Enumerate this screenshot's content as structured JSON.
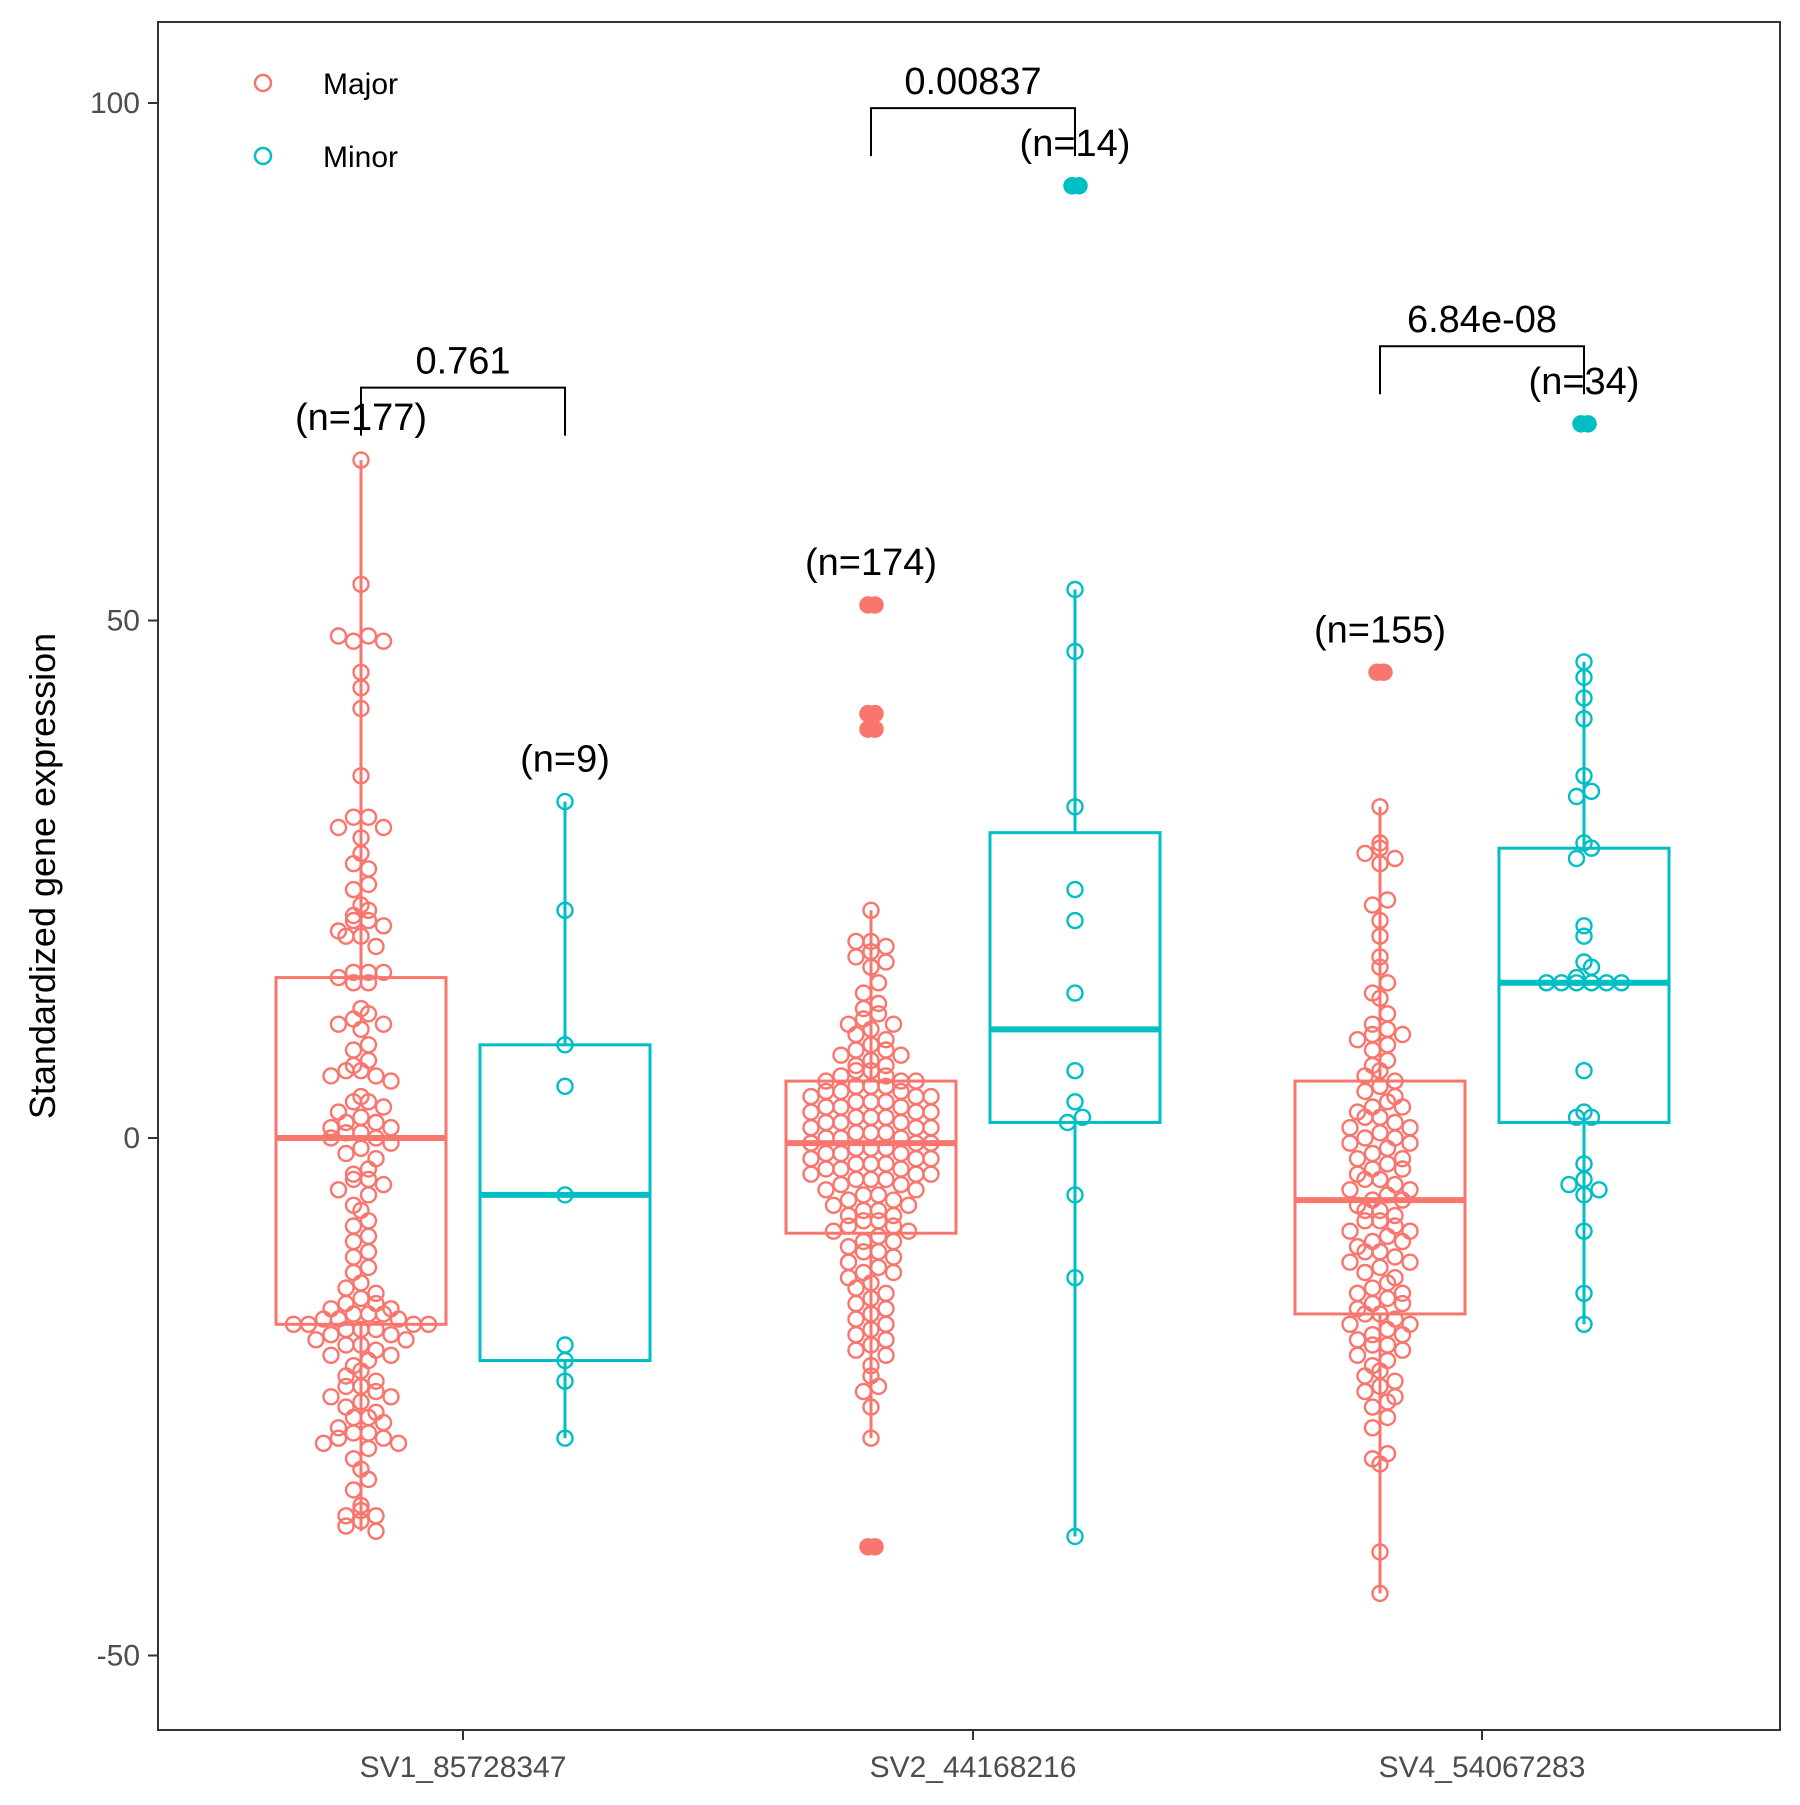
{
  "chart_data": {
    "type": "box",
    "xlabel": "",
    "ylabel": "Standardized gene expression",
    "ylim": [
      -57,
      108
    ],
    "yticks": [
      -50,
      0,
      50,
      100
    ],
    "categories": [
      "SV1_85728347",
      "SV2_44168216",
      "SV4_54067283"
    ],
    "legend": {
      "position": "top-left",
      "entries": [
        {
          "name": "Major",
          "color": "#F8766D"
        },
        {
          "name": "Minor",
          "color": "#00BFC4"
        }
      ]
    },
    "grid": false,
    "series": [
      {
        "name": "Major",
        "color": "#F8766D",
        "boxes": [
          {
            "category": "SV1_85728347",
            "n_label": "(n=177)",
            "whisker_low": -38,
            "q1": -18,
            "median": 0,
            "q3": 15.5,
            "whisker_high": 65.5,
            "outliers": []
          },
          {
            "category": "SV2_44168216",
            "n_label": "(n=174)",
            "whisker_low": -29,
            "q1": -9.2,
            "median": -0.5,
            "q3": 5.5,
            "whisker_high": 22,
            "outliers": [
              51.5,
              41,
              39.5,
              -39.5
            ]
          },
          {
            "category": "SV4_54067283",
            "n_label": "(n=155)",
            "whisker_low": -44,
            "q1": -17,
            "median": -6,
            "q3": 5.5,
            "whisker_high": 32,
            "outliers": [
              45
            ]
          }
        ]
      },
      {
        "name": "Minor",
        "color": "#00BFC4",
        "boxes": [
          {
            "category": "SV1_85728347",
            "n_label": "(n=9)",
            "whisker_low": -29,
            "q1": -21.5,
            "median": -5.5,
            "q3": 9,
            "whisker_high": 32.5,
            "outliers": []
          },
          {
            "category": "SV2_44168216",
            "n_label": "(n=14)",
            "whisker_low": -38.5,
            "q1": 1.5,
            "median": 10.5,
            "q3": 29.5,
            "whisker_high": 53,
            "outliers": [
              92
            ]
          },
          {
            "category": "SV4_54067283",
            "n_label": "(n=34)",
            "whisker_low": -18,
            "q1": 1.5,
            "median": 15,
            "q3": 28,
            "whisker_high": 46,
            "outliers": [
              69
            ]
          }
        ]
      }
    ],
    "comparisons": [
      {
        "category": "SV1_85728347",
        "p_value": "0.761",
        "bracket_y": 72.5
      },
      {
        "category": "SV2_44168216",
        "p_value": "0.00837",
        "bracket_y": 99.5
      },
      {
        "category": "SV4_54067283",
        "p_value": "6.84e-08",
        "bracket_y": 76.5
      }
    ],
    "points": {
      "SV1_85728347": {
        "Major": [
          65.5,
          53.5,
          48.5,
          48,
          48,
          48.5,
          45,
          43.5,
          41.5,
          35,
          31,
          31,
          30,
          30,
          29,
          27.5,
          26,
          26.5,
          24.5,
          24,
          22.5,
          22,
          21,
          21.5,
          21,
          20.5,
          20,
          19.5,
          19.5,
          18.5,
          16,
          16,
          16,
          15.5,
          15,
          15,
          12.5,
          12,
          11.5,
          11,
          11,
          10.5,
          9,
          8.5,
          7.5,
          7,
          6.5,
          6.5,
          6,
          6,
          5.5,
          4,
          3.5,
          3.5,
          3,
          2.5,
          2,
          1.5,
          1.5,
          1,
          1,
          0.5,
          0.5,
          0,
          0,
          -0.5,
          -1,
          -1.5,
          -2,
          -3,
          -3.5,
          -4,
          -4,
          -4.5,
          -5,
          -5.5,
          -6.5,
          -7,
          -8,
          -8.5,
          -9.5,
          -10,
          -11,
          -11.5,
          -12.5,
          -13,
          -14,
          -14.5,
          -15,
          -15.5,
          -16,
          -16,
          -16.5,
          -16.5,
          -17,
          -17,
          -17,
          -17.5,
          -17.5,
          -17.5,
          -18,
          -18,
          -18,
          -18,
          -18.5,
          -18.5,
          -18.5,
          -19,
          -19,
          -19.5,
          -19.5,
          -20,
          -20,
          -20.5,
          -21,
          -21,
          -21.5,
          -22,
          -22.5,
          -23,
          -23.5,
          -24,
          -24,
          -24.5,
          -25,
          -25,
          -25.5,
          -26,
          -26.5,
          -27,
          -27,
          -27.5,
          -28,
          -28.5,
          -28.5,
          -29,
          -29,
          -29.5,
          -29.5,
          -30,
          -31,
          -32,
          -33,
          -34,
          -35.5,
          -36,
          -36.5,
          -36.5,
          -37,
          -37.5,
          -38
        ],
        "Minor": [
          32.5,
          22,
          9,
          5,
          -5.5,
          -20,
          -21.5,
          -23.5,
          -29
        ]
      },
      "SV2_44168216": {
        "Major": [
          22,
          19,
          19,
          18.5,
          18,
          17.5,
          17,
          16.5,
          15,
          14,
          13,
          12.5,
          12,
          11.5,
          11,
          11,
          10.5,
          10,
          9.5,
          9,
          8.5,
          8.5,
          8,
          8,
          7.5,
          7,
          7,
          6.5,
          6.5,
          6,
          6,
          5.5,
          5.5,
          5.5,
          5,
          5,
          5,
          4.5,
          4.5,
          4.5,
          4,
          4,
          4,
          3.5,
          3.5,
          3.5,
          3,
          3,
          3,
          2.5,
          2.5,
          2.5,
          2,
          2,
          2,
          1.5,
          1.5,
          1.5,
          1,
          1,
          1,
          0.5,
          0.5,
          0.5,
          0,
          0,
          0,
          -0.5,
          -0.5,
          -0.5,
          -1,
          -1,
          -1,
          -1.5,
          -1.5,
          -1.5,
          -2,
          -2,
          -2,
          -2.5,
          -2.5,
          -2.5,
          -3,
          -3,
          -3,
          -3.5,
          -3.5,
          -3.5,
          -4,
          -4,
          -4,
          -4.5,
          -4.5,
          -5,
          -5,
          -5.5,
          -5.5,
          -6,
          -6,
          -6.5,
          -6.5,
          -7,
          -7,
          -7.5,
          -7.5,
          -8,
          -8,
          -8.5,
          -8.5,
          -9,
          -9,
          -9.5,
          -10,
          -10,
          -10.5,
          -11,
          -11,
          -11.5,
          -12,
          -12.5,
          -13,
          -13,
          -13.5,
          -14,
          -14.5,
          -15,
          -15.5,
          -16,
          -16.5,
          -17,
          -17.5,
          -18,
          -18.5,
          -19,
          -19.5,
          -20,
          -20.5,
          -21,
          -22,
          -23,
          -24,
          -24.5,
          -26,
          -29
        ],
        "Minor": [
          53,
          47,
          32,
          24,
          21,
          14,
          6.5,
          3.5,
          2,
          1.5,
          -5.5,
          -13.5,
          -38.5
        ]
      },
      "SV4_54067283": {
        "Major": [
          32,
          28.5,
          28,
          27.5,
          27,
          26.5,
          23,
          22.5,
          21,
          19.5,
          17.5,
          16.5,
          15,
          14,
          13.5,
          12,
          11,
          10.5,
          10,
          10,
          9.5,
          9,
          8.5,
          7.5,
          7,
          6.5,
          6,
          5.5,
          5,
          4.5,
          4,
          3.5,
          3,
          3,
          2.5,
          2,
          2,
          1.5,
          1,
          1,
          0.5,
          0,
          0,
          -0.5,
          -0.5,
          -1,
          -1.5,
          -2,
          -2,
          -2.5,
          -3,
          -3,
          -3.5,
          -4,
          -4,
          -4.5,
          -5,
          -5,
          -5.5,
          -6,
          -6,
          -6.5,
          -7,
          -7,
          -7.5,
          -8,
          -8,
          -8.5,
          -9,
          -9,
          -9.5,
          -10,
          -10,
          -10.5,
          -11,
          -11,
          -11.5,
          -12,
          -12,
          -12.5,
          -13,
          -13.5,
          -14,
          -14.5,
          -15,
          -15,
          -15.5,
          -16,
          -16,
          -16.5,
          -17,
          -17,
          -17.5,
          -18,
          -18,
          -18.5,
          -19,
          -19,
          -19.5,
          -20,
          -20,
          -20.5,
          -21,
          -21.5,
          -22,
          -22.5,
          -23,
          -23.5,
          -24,
          -24.5,
          -25,
          -25.5,
          -26,
          -27,
          -28,
          -30.5,
          -31,
          -31.5,
          -40,
          -44
        ],
        "Minor": [
          46,
          44.5,
          42.5,
          40.5,
          35,
          33.5,
          33,
          28.5,
          28,
          27,
          20.5,
          19.5,
          17,
          16.5,
          15.5,
          15,
          15,
          15,
          15,
          15,
          15,
          6.5,
          2.5,
          2,
          2,
          -2.5,
          -4,
          -4.5,
          -5,
          -5.5,
          -9,
          -15,
          -18
        ]
      }
    }
  },
  "x_tick_labels": [
    "SV1_85728347",
    "SV2_44168216",
    "SV4_54067283"
  ],
  "y_tick_labels": [
    "-50",
    "0",
    "50",
    "100"
  ],
  "legend_labels": {
    "major": "Major",
    "minor": "Minor"
  }
}
